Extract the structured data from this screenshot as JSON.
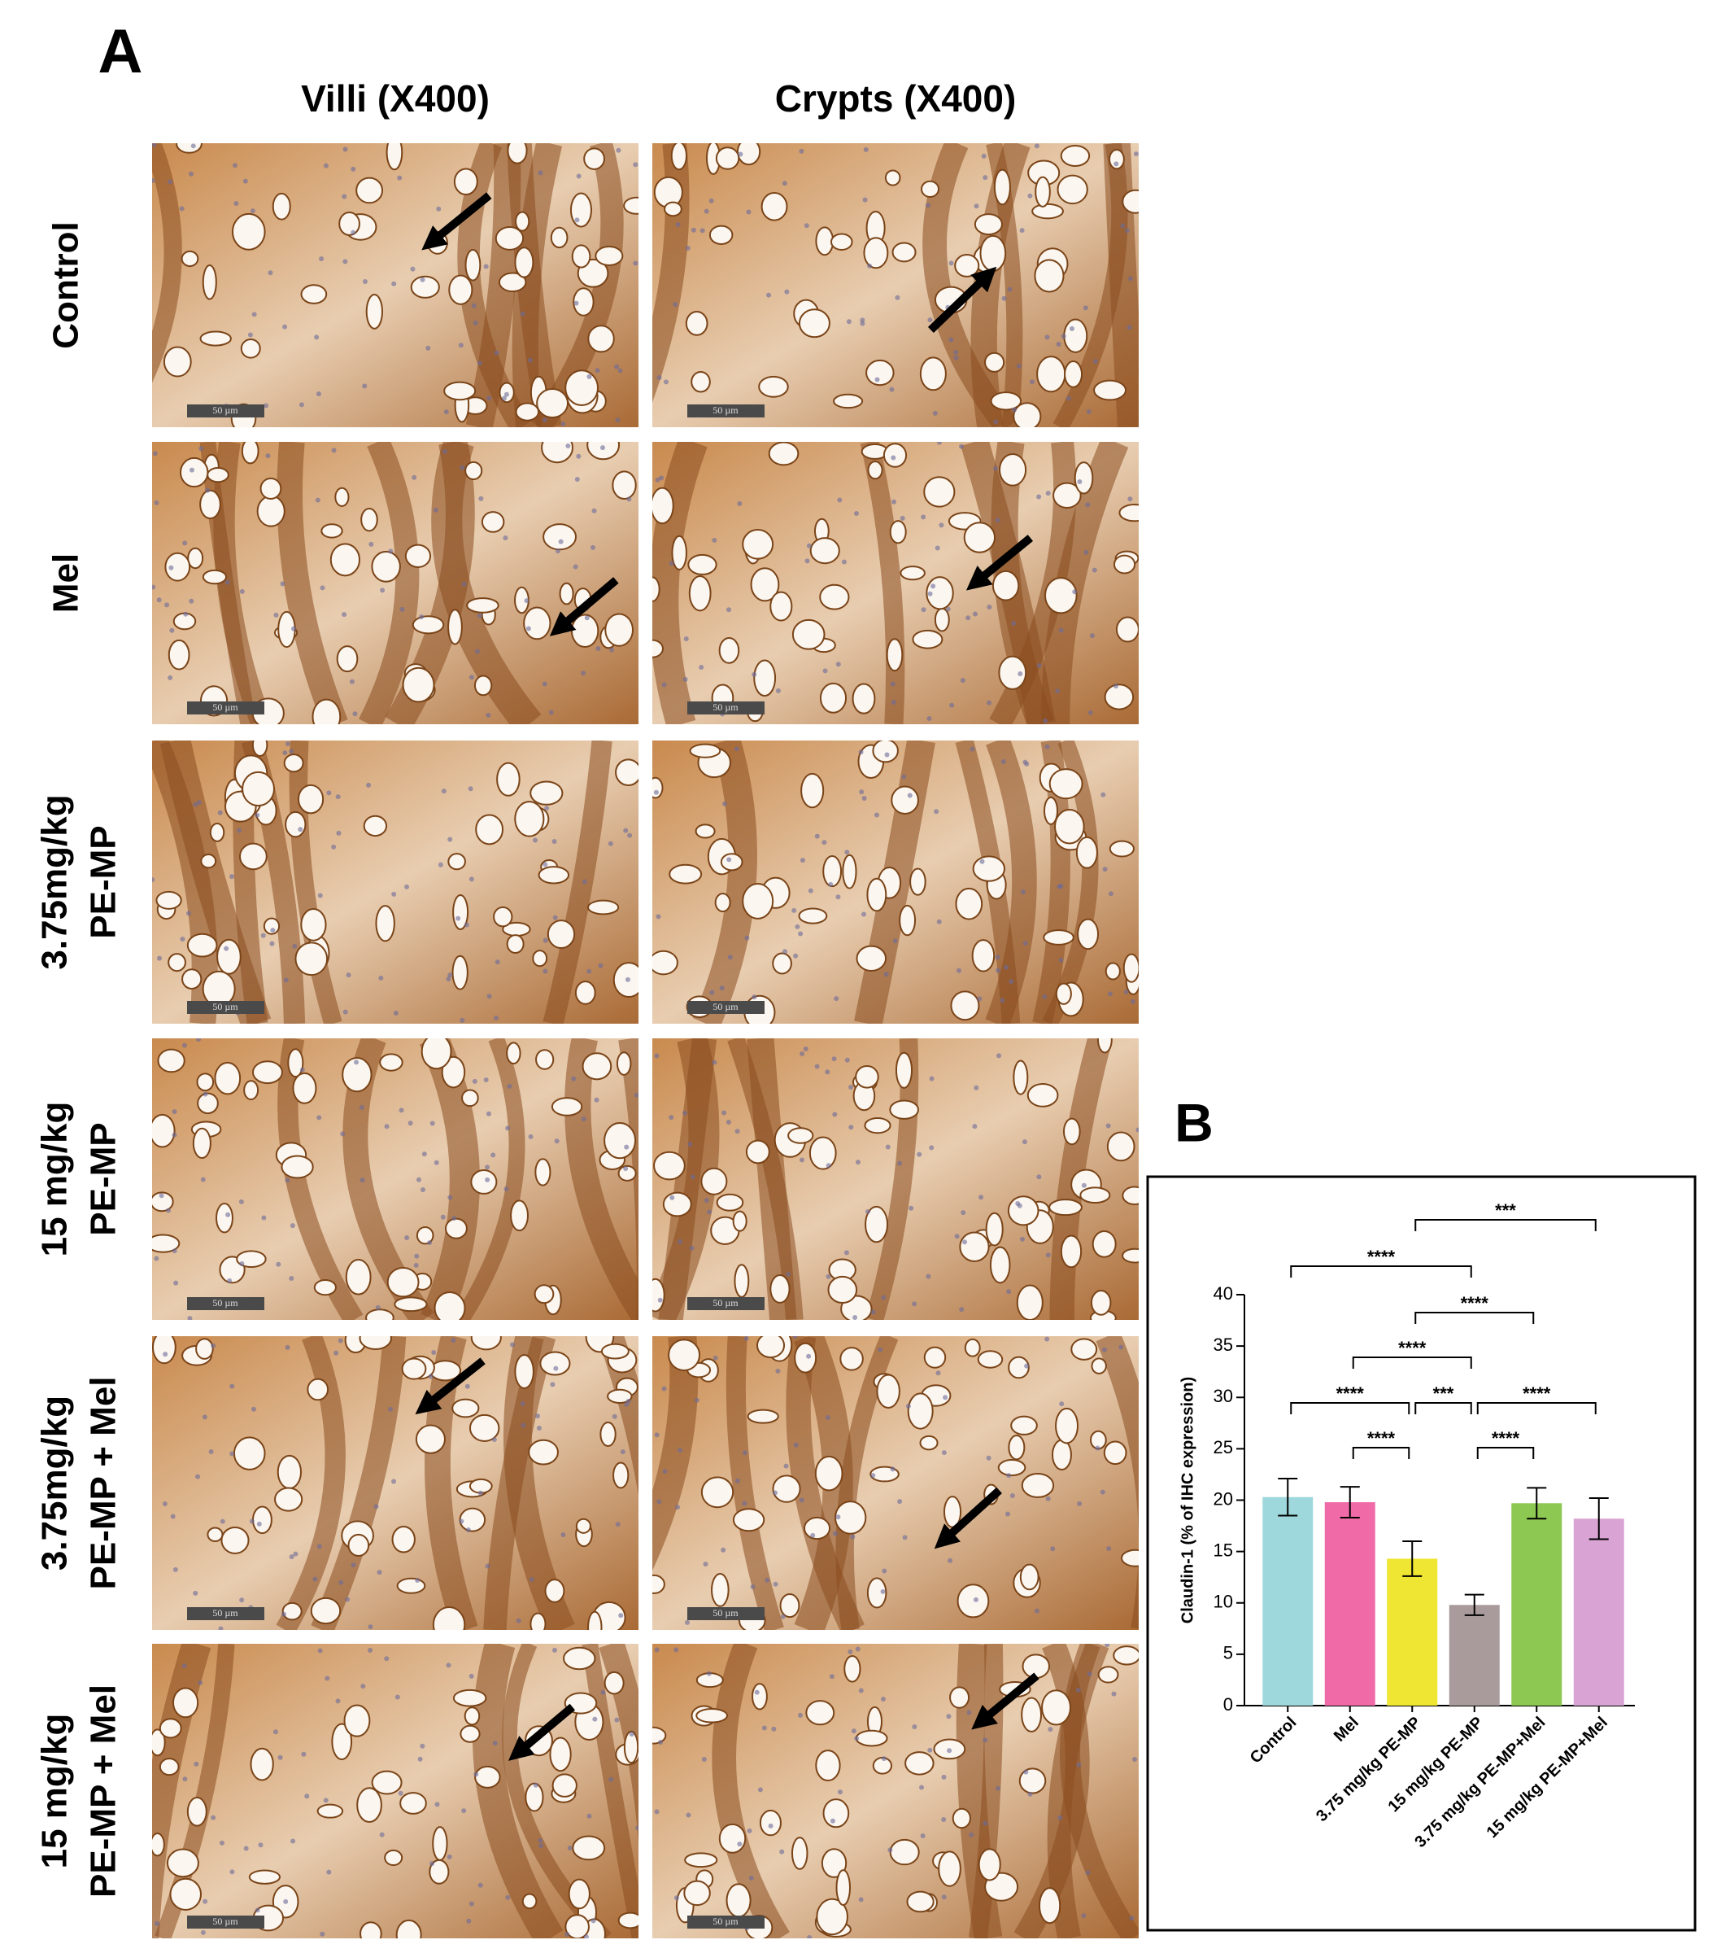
{
  "panel_a": {
    "label": "A",
    "columns": [
      "Villi (X400)",
      "Crypts (X400)"
    ],
    "rows": [
      [
        "Control"
      ],
      [
        "Mel"
      ],
      [
        "3.75mg/kg",
        "PE-MP"
      ],
      [
        "15 mg/kg",
        "PE-MP"
      ],
      [
        "3.75mg/kg",
        "PE-MP + Mel"
      ],
      [
        "15 mg/kg",
        "PE-MP + Mel"
      ]
    ],
    "scale_bar": "50 µm"
  },
  "panel_b": {
    "label": "B"
  },
  "chart_data": {
    "type": "bar",
    "ylabel": "Claudin-1 (% of IHC expression)",
    "categories": [
      "Control",
      "Mel",
      "3.75 mg/kg PE-MP",
      "15 mg/kg PE-MP",
      "3.75 mg/kg PE-MP+Mel",
      "15 mg/kg PE-MP+Mel"
    ],
    "values": [
      20.3,
      19.8,
      14.3,
      9.8,
      19.7,
      18.2
    ],
    "errors": [
      1.8,
      1.5,
      1.7,
      1.0,
      1.5,
      2.0
    ],
    "colors": [
      "#9fd8dc",
      "#f06aa8",
      "#eee632",
      "#a99b9b",
      "#8dc852",
      "#d9a3d3"
    ],
    "ylim": [
      0,
      40
    ],
    "yticks": [
      0,
      5,
      10,
      15,
      20,
      25,
      30,
      35,
      40
    ],
    "comparisons": [
      {
        "from": "Mel",
        "to": "3.75 mg/kg PE-MP",
        "label": "****"
      },
      {
        "from": "15 mg/kg PE-MP",
        "to": "3.75 mg/kg PE-MP+Mel",
        "label": "****"
      },
      {
        "from": "Control",
        "to": "3.75 mg/kg PE-MP",
        "label": "****"
      },
      {
        "from": "3.75 mg/kg PE-MP",
        "to": "15 mg/kg PE-MP",
        "label": "***"
      },
      {
        "from": "15 mg/kg PE-MP",
        "to": "15 mg/kg PE-MP+Mel",
        "label": "****"
      },
      {
        "from": "Mel",
        "to": "15 mg/kg PE-MP",
        "label": "****"
      },
      {
        "from": "3.75 mg/kg PE-MP",
        "to": "3.75 mg/kg PE-MP+Mel",
        "label": "****"
      },
      {
        "from": "Control",
        "to": "15 mg/kg PE-MP",
        "label": "****"
      },
      {
        "from": "3.75 mg/kg PE-MP",
        "to": "15 mg/kg PE-MP+Mel",
        "label": "***"
      }
    ]
  }
}
